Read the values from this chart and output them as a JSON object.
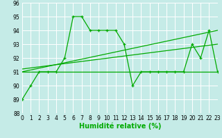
{
  "xlabel": "Humidité relative (%)",
  "bg_color": "#c5ebe7",
  "grid_color": "#ffffff",
  "line_color": "#00aa00",
  "line1_x": [
    0,
    1,
    2,
    3,
    4,
    5,
    6,
    7,
    8,
    9,
    10,
    11,
    12,
    13,
    14,
    15,
    16,
    17,
    18,
    19,
    20,
    21,
    22,
    23
  ],
  "line1_y": [
    89,
    90,
    91,
    91,
    91,
    92,
    95,
    95,
    94,
    94,
    94,
    94,
    93,
    90,
    91,
    91,
    91,
    91,
    91,
    91,
    93,
    92,
    94,
    91
  ],
  "line2_x": [
    0,
    23
  ],
  "line2_y": [
    91,
    91
  ],
  "line3_x": [
    0,
    23
  ],
  "line3_y": [
    91.0,
    94.0
  ],
  "line4_x": [
    0,
    23
  ],
  "line4_y": [
    91.2,
    93.0
  ],
  "ylim": [
    88,
    96
  ],
  "xlim": [
    0,
    23
  ],
  "yticks": [
    88,
    89,
    90,
    91,
    92,
    93,
    94,
    95,
    96
  ],
  "xticks": [
    0,
    1,
    2,
    3,
    4,
    5,
    6,
    7,
    8,
    9,
    10,
    11,
    12,
    13,
    14,
    15,
    16,
    17,
    18,
    19,
    20,
    21,
    22,
    23
  ],
  "markersize": 3.5,
  "linewidth": 0.9,
  "tick_fontsize": 5.5,
  "xlabel_fontsize": 7.0
}
